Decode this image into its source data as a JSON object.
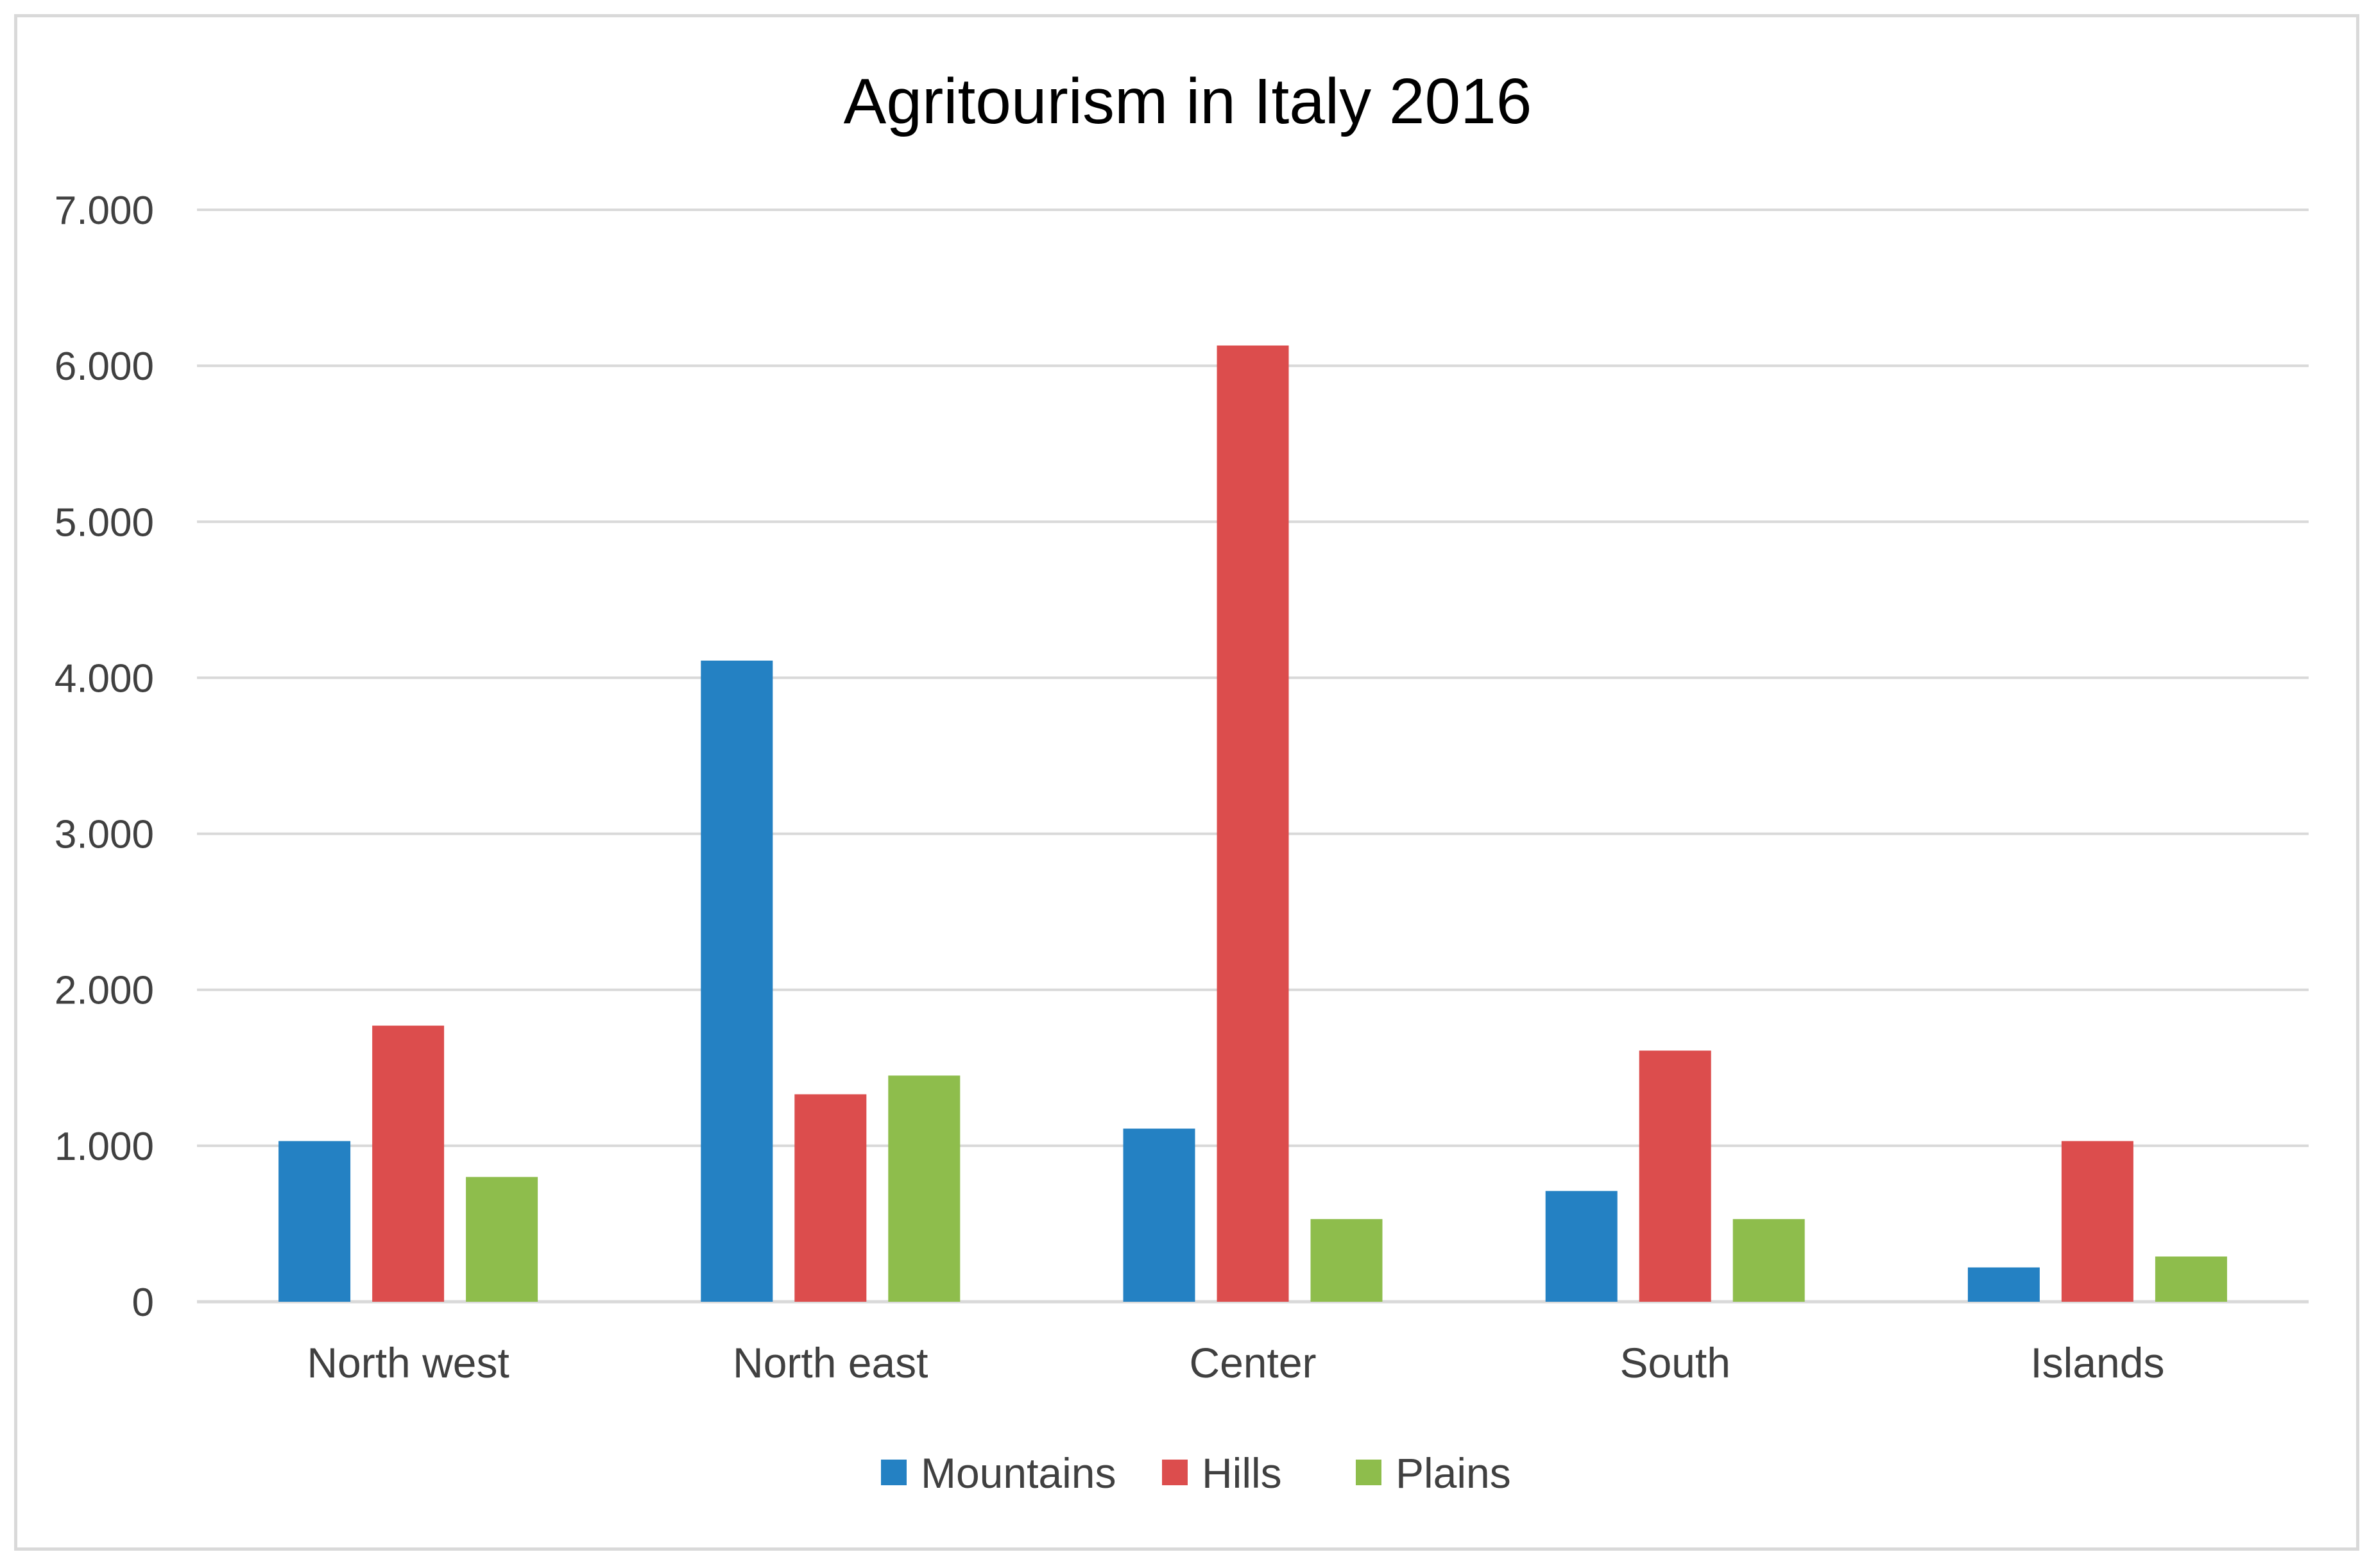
{
  "chart_data": {
    "type": "bar",
    "title": "Agritourism in Italy 2016",
    "xlabel": "",
    "ylabel": "",
    "categories": [
      "North west",
      "North east",
      "Center",
      "South",
      "Islands"
    ],
    "series": [
      {
        "name": "Mountains",
        "color": "#2481c3",
        "values": [
          1030,
          4110,
          1110,
          710,
          220
        ]
      },
      {
        "name": "Hills",
        "color": "#dc4d4d",
        "values": [
          1770,
          1330,
          6130,
          1610,
          1030
        ]
      },
      {
        "name": "Plains",
        "color": "#8ebd4c",
        "values": [
          800,
          1450,
          530,
          530,
          290
        ]
      }
    ],
    "ylim": [
      0,
      7000
    ],
    "yticks": [
      0,
      1000,
      2000,
      3000,
      4000,
      5000,
      6000,
      7000
    ],
    "ytick_labels": [
      "0",
      "1.000",
      "2.000",
      "3.000",
      "4.000",
      "5.000",
      "6.000",
      "7.000"
    ],
    "grid": true,
    "gridline_color": "#d9d9d9",
    "legend_position": "bottom"
  }
}
